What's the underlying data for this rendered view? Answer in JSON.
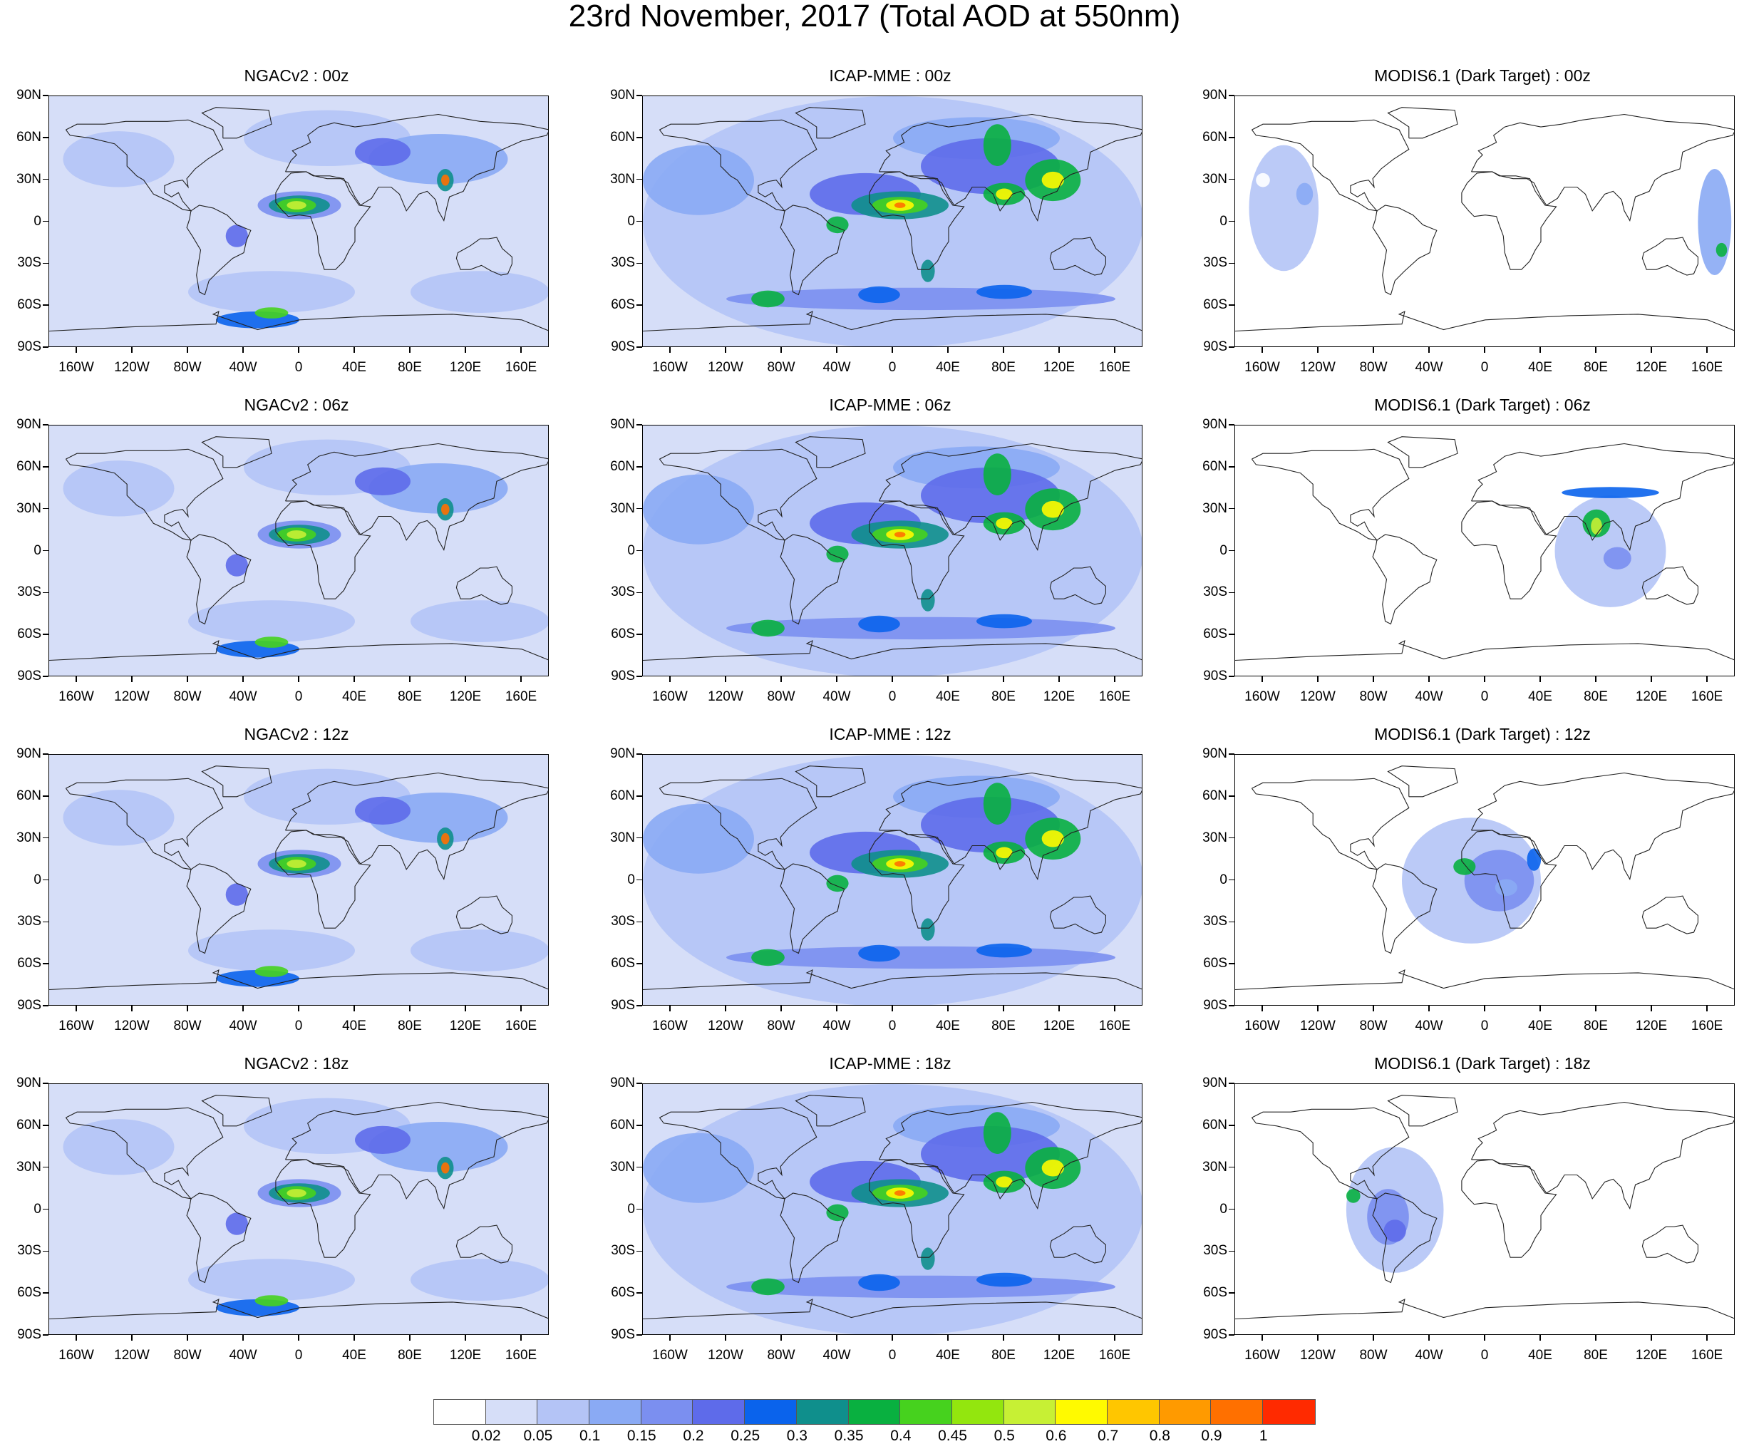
{
  "title": "23rd November, 2017 (Total AOD at 550nm)",
  "lat_labels": [
    "90N",
    "60N",
    "30N",
    "0",
    "30S",
    "60S",
    "90S"
  ],
  "lon_labels": [
    "160W",
    "120W",
    "80W",
    "40W",
    "0",
    "40E",
    "80E",
    "120E",
    "160E"
  ],
  "panels": [
    {
      "title": "NGACv2 : 00z",
      "model": "ngac",
      "hour": "00z"
    },
    {
      "title": "ICAP-MME : 00z",
      "model": "icap",
      "hour": "00z"
    },
    {
      "title": "MODIS6.1 (Dark Target) : 00z",
      "model": "modis",
      "hour": "00z"
    },
    {
      "title": "NGACv2 : 06z",
      "model": "ngac",
      "hour": "06z"
    },
    {
      "title": "ICAP-MME : 06z",
      "model": "icap",
      "hour": "06z"
    },
    {
      "title": "MODIS6.1 (Dark Target) : 06z",
      "model": "modis",
      "hour": "06z"
    },
    {
      "title": "NGACv2 : 12z",
      "model": "ngac",
      "hour": "12z"
    },
    {
      "title": "ICAP-MME : 12z",
      "model": "icap",
      "hour": "12z"
    },
    {
      "title": "MODIS6.1 (Dark Target) : 12z",
      "model": "modis",
      "hour": "12z"
    },
    {
      "title": "NGACv2 : 18z",
      "model": "ngac",
      "hour": "18z"
    },
    {
      "title": "ICAP-MME : 18z",
      "model": "icap",
      "hour": "18z"
    },
    {
      "title": "MODIS6.1 (Dark Target) : 18z",
      "model": "modis",
      "hour": "18z"
    }
  ],
  "colorbar": {
    "colors": [
      "#ffffff",
      "#d6def8",
      "#b4c4f6",
      "#8aaaf4",
      "#7b8ff0",
      "#5e6bea",
      "#0a63ec",
      "#0f8f8c",
      "#09b040",
      "#46d21e",
      "#93e60e",
      "#c7f034",
      "#fffa00",
      "#ffc600",
      "#ff9a00",
      "#ff7000",
      "#ff2a00"
    ],
    "labels": [
      "0.02",
      "0.05",
      "0.1",
      "0.15",
      "0.2",
      "0.25",
      "0.3",
      "0.35",
      "0.4",
      "0.45",
      "0.5",
      "0.6",
      "0.7",
      "0.8",
      "0.9",
      "1"
    ]
  }
}
